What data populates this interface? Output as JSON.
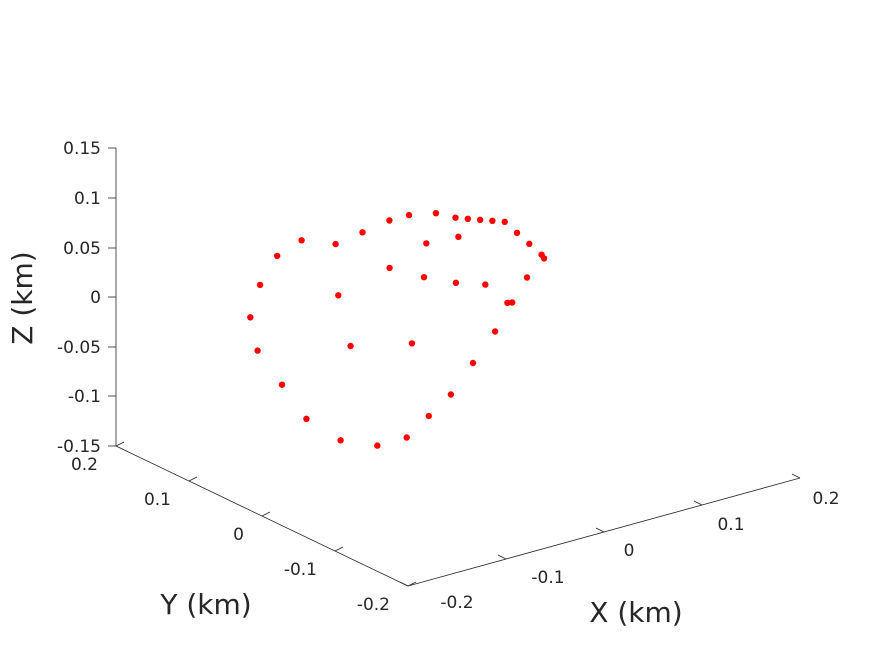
{
  "chart_data": {
    "type": "scatter",
    "xlabel": "X (km)",
    "ylabel": "Y (km)",
    "zlabel": "Z (km)",
    "xlim": [
      -0.2,
      0.2
    ],
    "ylim": [
      -0.2,
      0.2
    ],
    "zlim": [
      -0.15,
      0.15
    ],
    "x_ticks": [
      "-0.2",
      "-0.1",
      "0",
      "0.1",
      "0.2"
    ],
    "y_ticks": [
      "-0.2",
      "-0.1",
      "0",
      "0.1",
      "0.2"
    ],
    "z_ticks": [
      "-0.15",
      "-0.1",
      "-0.05",
      "0",
      "0.05",
      "0.1",
      "0.15"
    ],
    "marker_color": "#ff0000",
    "grid": false,
    "points": [
      [
        -0.12,
        -0.04,
        0.1
      ],
      [
        -0.1,
        -0.05,
        0.11
      ],
      [
        -0.08,
        -0.06,
        0.12
      ],
      [
        -0.06,
        -0.06,
        0.12
      ],
      [
        -0.04,
        -0.07,
        0.12
      ],
      [
        -0.02,
        -0.07,
        0.11
      ],
      [
        0.0,
        -0.06,
        0.1
      ],
      [
        0.02,
        -0.05,
        0.09
      ],
      [
        0.04,
        -0.04,
        0.08
      ],
      [
        0.06,
        -0.03,
        0.07
      ],
      [
        0.08,
        -0.02,
        0.05
      ],
      [
        0.1,
        -0.01,
        0.03
      ],
      [
        0.12,
        0.0,
        0.01
      ],
      [
        0.13,
        0.01,
        0.0
      ],
      [
        0.12,
        0.02,
        -0.02
      ],
      [
        0.1,
        0.02,
        -0.04
      ],
      [
        0.08,
        0.01,
        -0.06
      ],
      [
        0.05,
        0.0,
        -0.08
      ],
      [
        0.02,
        -0.01,
        -0.1
      ],
      [
        -0.01,
        -0.02,
        -0.11
      ],
      [
        -0.04,
        -0.03,
        -0.12
      ],
      [
        -0.07,
        -0.03,
        -0.12
      ],
      [
        -0.1,
        -0.02,
        -0.11
      ],
      [
        -0.12,
        0.0,
        -0.09
      ],
      [
        -0.13,
        0.02,
        -0.06
      ],
      [
        -0.14,
        0.04,
        -0.03
      ],
      [
        -0.14,
        0.05,
        0.0
      ],
      [
        -0.13,
        0.05,
        0.03
      ],
      [
        -0.12,
        0.04,
        0.06
      ],
      [
        -0.11,
        0.02,
        0.08
      ],
      [
        -0.05,
        -0.02,
        0.05
      ],
      [
        0.0,
        0.0,
        0.02
      ],
      [
        0.04,
        0.01,
        0.0
      ],
      [
        0.07,
        0.01,
        -0.01
      ],
      [
        -0.06,
        0.02,
        -0.04
      ],
      [
        0.01,
        0.03,
        -0.06
      ],
      [
        0.05,
        0.02,
        0.04
      ],
      [
        -0.02,
        -0.03,
        0.07
      ],
      [
        -0.08,
        0.01,
        0.02
      ],
      [
        0.09,
        0.0,
        -0.03
      ]
    ]
  }
}
